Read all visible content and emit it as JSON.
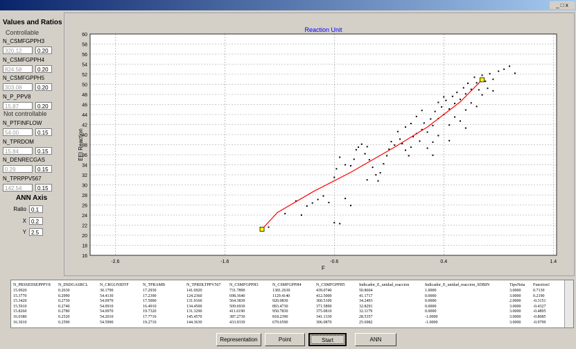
{
  "left_panel": {
    "title": "Values and Ratios",
    "controllable_label": "Controllable",
    "controllable": [
      {
        "name": "N_CSMFGPPH3",
        "value": "320.12",
        "ratio": "0.20"
      },
      {
        "name": "N_CSMFGPPH4",
        "value": "824.58",
        "ratio": "0.20"
      },
      {
        "name": "N_CSMFGPPH5",
        "value": "303.08",
        "ratio": "0.20"
      },
      {
        "name": "N_P_PPV8",
        "value": "15.87",
        "ratio": "0.20"
      }
    ],
    "not_controllable_label": "Not controllable",
    "not_controllable": [
      {
        "name": "N_PTFINFLOW",
        "value": "54.00",
        "ratio": "0.15"
      },
      {
        "name": "N_TPRDOM",
        "value": "15.84",
        "ratio": "0.15"
      },
      {
        "name": "N_DENRECGAS",
        "value": "0.29",
        "ratio": "0.15"
      },
      {
        "name": "N_TPRPPV567",
        "value": "142.54",
        "ratio": "0.15"
      }
    ],
    "ann_title": "ANN Axis",
    "ann": [
      {
        "label": "Ratio",
        "value": "0.1"
      },
      {
        "label": "X",
        "value": "0.2"
      },
      {
        "label": "Y",
        "value": "2.5"
      }
    ]
  },
  "chart_data": {
    "type": "scatter",
    "title": "Reaction Unit",
    "x_label": "F",
    "y_label": "EEI Reaction",
    "xlim": [
      -2.83,
      1.43
    ],
    "ylim": [
      16,
      60
    ],
    "xticks": [
      -2.6,
      -1.6,
      -0.6,
      0.4,
      1.4
    ],
    "yticks": [
      16,
      18,
      20,
      22,
      24,
      26,
      28,
      30,
      32,
      34,
      36,
      38,
      40,
      42,
      44,
      46,
      48,
      50,
      52,
      54,
      56,
      58,
      60
    ],
    "grid": true,
    "series": [
      {
        "color": "#000000",
        "x": [
          -0.85,
          -0.8,
          -0.75,
          -0.9,
          -0.6,
          -0.55,
          -0.7,
          -0.65,
          -0.45,
          -0.5,
          -0.6,
          -0.58,
          -0.5,
          -0.45,
          -0.42,
          -0.4,
          -0.38,
          -0.35,
          -0.3,
          -0.32,
          -0.28,
          -0.25,
          -0.22,
          -0.2,
          -0.18,
          -0.15,
          -0.12,
          -0.1,
          -0.08,
          -0.05,
          0.0,
          0.02,
          0.05,
          0.08,
          0.1,
          0.12,
          0.15,
          0.18,
          0.2,
          0.22,
          0.25,
          0.28,
          0.3,
          0.32,
          0.35,
          0.38,
          0.4,
          0.42,
          0.45,
          0.48,
          0.5,
          0.52,
          0.55,
          0.58,
          0.6,
          0.62,
          0.65,
          0.68,
          0.7,
          0.72,
          0.75,
          0.78,
          0.8,
          0.82,
          0.85,
          0.9,
          0.95,
          1.0,
          1.05,
          0.35,
          0.3,
          0.25,
          0.45,
          0.5,
          0.55,
          0.6,
          0.65,
          0.4,
          0.35,
          0.2,
          0.15,
          0.1,
          0.05,
          -0.02,
          0.3,
          0.6,
          0.7,
          0.75,
          0.85,
          -1.05,
          -1.2,
          -0.95,
          -0.3,
          -0.55,
          0.45
        ],
        "y": [
          25.8,
          26.4,
          27.1,
          24.0,
          22.5,
          22.3,
          27.8,
          26.5,
          25.9,
          27.3,
          31.5,
          33.2,
          34.0,
          33.8,
          35.1,
          37.0,
          37.5,
          38.1,
          37.6,
          36.2,
          35.0,
          33.5,
          32.0,
          30.8,
          32.4,
          34.2,
          35.8,
          37.1,
          38.6,
          37.9,
          39.1,
          38.2,
          36.9,
          35.8,
          37.5,
          39.6,
          40.2,
          38.7,
          41.0,
          42.3,
          40.5,
          43.1,
          41.8,
          44.6,
          43.2,
          45.5,
          44.0,
          46.8,
          45.1,
          47.6,
          46.2,
          48.4,
          47.0,
          49.3,
          48.1,
          50.2,
          49.0,
          51.4,
          50.3,
          48.9,
          51.8,
          50.6,
          49.2,
          52.1,
          51.0,
          52.6,
          53.0,
          53.6,
          52.2,
          39.8,
          38.5,
          37.3,
          41.9,
          43.5,
          42.7,
          44.9,
          46.3,
          47.5,
          46.4,
          44.8,
          43.6,
          42.2,
          41.5,
          40.6,
          35.9,
          41.3,
          45.6,
          47.9,
          48.7,
          24.3,
          21.6,
          26.8,
          31.0,
          35.5,
          38.8
        ]
      }
    ],
    "line": {
      "color": "#ff0000",
      "x": [
        -1.26,
        -1.12,
        -0.79,
        -0.45,
        -0.05,
        0.25,
        0.55,
        0.75
      ],
      "y": [
        21.2,
        24.5,
        28.7,
        32.5,
        37.5,
        41.5,
        46.5,
        50.9
      ]
    },
    "endpoint_color": "#ffff00"
  },
  "table": {
    "headers": [
      "N_PRSSEDSEPPPV8",
      "N_DSDGASRCL",
      "N_CRGUNIDTF",
      "N_TPRAMB",
      "N_TPRDLTPPV567",
      "N_CSMFGPPH3",
      "N_CSMFGPPH4",
      "N_CSMFGPPH5",
      "Indicador_E_unidad_reaccion",
      "Indicador_E_unidad_reaccion_SDBIN",
      "TipoNeta",
      "Function1"
    ],
    "rows": [
      [
        "15.0920",
        "0.2630",
        "30.1790",
        "17.2930",
        "141.6920",
        "731.7890",
        "1381.2630",
        "439.0740",
        "50.8604",
        "1.0000",
        "3.0000",
        "0.7130"
      ],
      [
        "15.3770",
        "0.2990",
        "54.4130",
        "17.2390",
        "124.2360",
        "698.3640",
        "1129.4140",
        "412.5000",
        "41.1717",
        "0.0000",
        "3.0000",
        "0.2190"
      ],
      [
        "15.3420",
        "0.2730",
        "54.0970",
        "17.5000",
        "131.9160",
        "564.3830",
        "920.0830",
        "360.5100",
        "34.2493",
        "0.0000",
        "2.0000",
        "-0.3151"
      ],
      [
        "15.5910",
        "0.2740",
        "54.0910",
        "16.4910",
        "134.4500",
        "509.6930",
        "893.4730",
        "371.5890",
        "32.8291",
        "0.0000",
        "3.0000",
        "-0.4327"
      ],
      [
        "15.8260",
        "0.2780",
        "54.0970",
        "19.7320",
        "131.3290",
        "411.6190",
        "950.7830",
        "375.0810",
        "32.1179",
        "0.0000",
        "3.0000",
        "-0.4895"
      ],
      [
        "16.0380",
        "0.2520",
        "54.2010",
        "17.7710",
        "145.4570",
        "387.2730",
        "818.2390",
        "341.1330",
        "28.5357",
        "-1.0000",
        "3.0000",
        "-0.8085"
      ],
      [
        "16.3010",
        "0.2590",
        "54.5990",
        "19.2710",
        "144.3630",
        "433.9330",
        "679.6590",
        "306.0870",
        "25.6982",
        "-1.0000",
        "3.0000",
        "-0.9799"
      ]
    ]
  },
  "buttons": [
    "Representation",
    "Point",
    "Start",
    "ANN"
  ]
}
